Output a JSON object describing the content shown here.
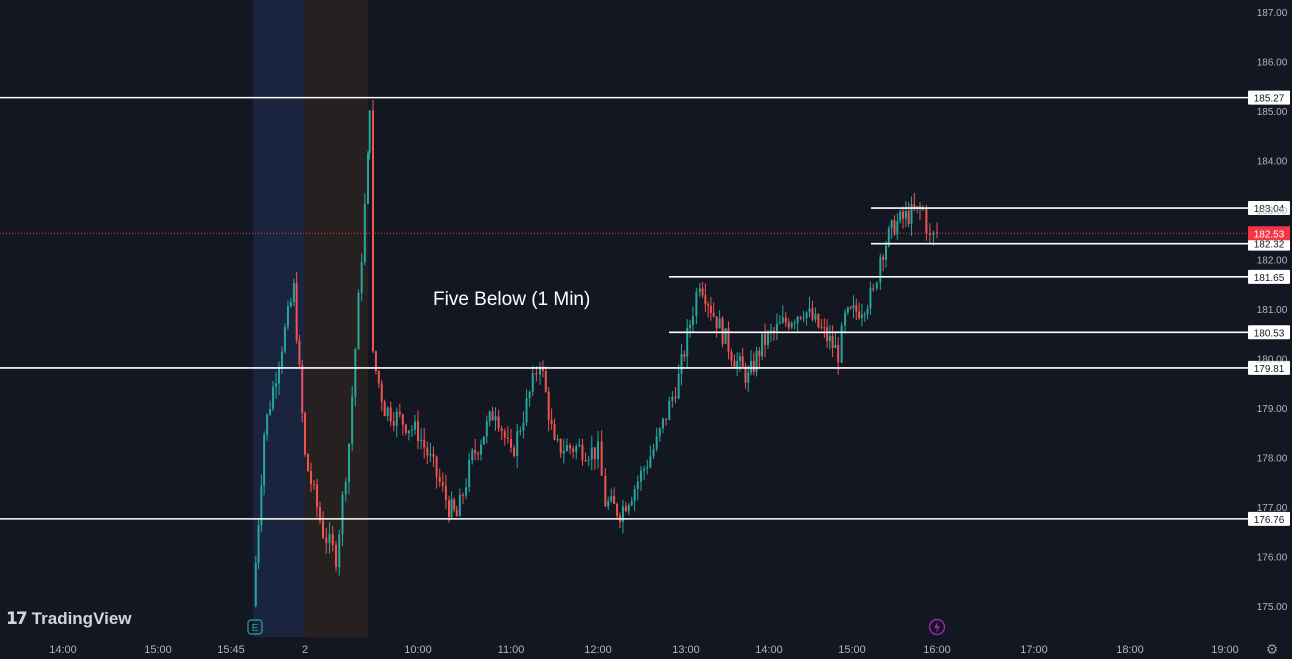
{
  "app": {
    "logo_text": "TradingView",
    "logo_icon": "tradingview-logo-icon",
    "settings_icon": "gear-icon"
  },
  "colors": {
    "background": "#131722",
    "up": "#26a69a",
    "down": "#ef5350",
    "level_line": "#ffffff",
    "last_price_badge": "#f23645",
    "premarket_shade": "#1d2a4a",
    "afterhours_shade": "#2a2320",
    "event_dividend": "#9c27b0"
  },
  "chart_data": {
    "type": "candlestick",
    "title": "Five Below (1 Min)",
    "xlabel": "",
    "ylabel": "",
    "ylim": [
      174.6,
      187.2
    ],
    "y_ticks": [
      "175.00",
      "176.00",
      "177.00",
      "178.00",
      "179.00",
      "180.00",
      "181.00",
      "182.00",
      "183.00",
      "184.00",
      "185.00",
      "186.00",
      "187.00"
    ],
    "x_ticks": [
      "14:00",
      "15:00",
      "15:45",
      "2",
      "10:00",
      "11:00",
      "12:00",
      "13:00",
      "14:00",
      "15:00",
      "16:00",
      "17:00",
      "18:00",
      "19:00"
    ],
    "last_price": "182.53",
    "levels": [
      {
        "price": 185.27,
        "label": "185.27",
        "span": "full"
      },
      {
        "price": 183.04,
        "label": "183.04",
        "span": "late"
      },
      {
        "price": 182.32,
        "label": "182.32",
        "span": "late"
      },
      {
        "price": 181.65,
        "label": "181.65",
        "span": "mid"
      },
      {
        "price": 180.53,
        "label": "180.53",
        "span": "mid"
      },
      {
        "price": 179.81,
        "label": "179.81",
        "span": "full"
      },
      {
        "price": 176.76,
        "label": "176.76",
        "span": "full"
      }
    ],
    "events": [
      {
        "type": "earnings",
        "label": "E",
        "x_tick": "15:45"
      },
      {
        "type": "dividend",
        "icon": "lightning-icon",
        "x_tick": "16:00"
      }
    ],
    "price_path": [
      {
        "t": "15:45",
        "p": 175.0
      },
      {
        "t": "15:48",
        "p": 178.5
      },
      {
        "t": "15:52",
        "p": 180.0
      },
      {
        "t": "15:56",
        "p": 181.4
      },
      {
        "t": "15:59",
        "p": 178.0
      },
      {
        "t": "premarket",
        "p": 176.5
      },
      {
        "t": "premarket",
        "p": 176.0
      },
      {
        "t": "premarket",
        "p": 178.3
      },
      {
        "t": "09:30",
        "p": 184.0
      },
      {
        "t": "09:31",
        "p": 185.2
      },
      {
        "t": "09:33",
        "p": 180.0
      },
      {
        "t": "09:40",
        "p": 179.0
      },
      {
        "t": "10:00",
        "p": 178.5
      },
      {
        "t": "10:10",
        "p": 177.8
      },
      {
        "t": "10:20",
        "p": 177.0
      },
      {
        "t": "10:25",
        "p": 176.8
      },
      {
        "t": "10:35",
        "p": 178.0
      },
      {
        "t": "10:50",
        "p": 179.0
      },
      {
        "t": "11:00",
        "p": 178.0
      },
      {
        "t": "11:15",
        "p": 179.5
      },
      {
        "t": "11:20",
        "p": 180.0
      },
      {
        "t": "11:30",
        "p": 178.2
      },
      {
        "t": "11:45",
        "p": 178.2
      },
      {
        "t": "12:00",
        "p": 178.1
      },
      {
        "t": "12:05",
        "p": 177.1
      },
      {
        "t": "12:15",
        "p": 176.9
      },
      {
        "t": "12:25",
        "p": 177.4
      },
      {
        "t": "12:40",
        "p": 178.3
      },
      {
        "t": "12:55",
        "p": 179.6
      },
      {
        "t": "13:05",
        "p": 181.0
      },
      {
        "t": "13:10",
        "p": 181.6
      },
      {
        "t": "13:20",
        "p": 180.9
      },
      {
        "t": "13:35",
        "p": 180.0
      },
      {
        "t": "13:45",
        "p": 179.6
      },
      {
        "t": "13:55",
        "p": 180.3
      },
      {
        "t": "14:10",
        "p": 180.7
      },
      {
        "t": "14:25",
        "p": 181.0
      },
      {
        "t": "14:40",
        "p": 180.5
      },
      {
        "t": "14:50",
        "p": 180.1
      },
      {
        "t": "14:55",
        "p": 180.8
      },
      {
        "t": "15:05",
        "p": 181.0
      },
      {
        "t": "15:15",
        "p": 181.3
      },
      {
        "t": "15:20",
        "p": 182.1
      },
      {
        "t": "15:30",
        "p": 182.7
      },
      {
        "t": "15:40",
        "p": 182.9
      },
      {
        "t": "15:50",
        "p": 183.0
      },
      {
        "t": "15:55",
        "p": 182.4
      },
      {
        "t": "16:00",
        "p": 182.53
      }
    ]
  }
}
